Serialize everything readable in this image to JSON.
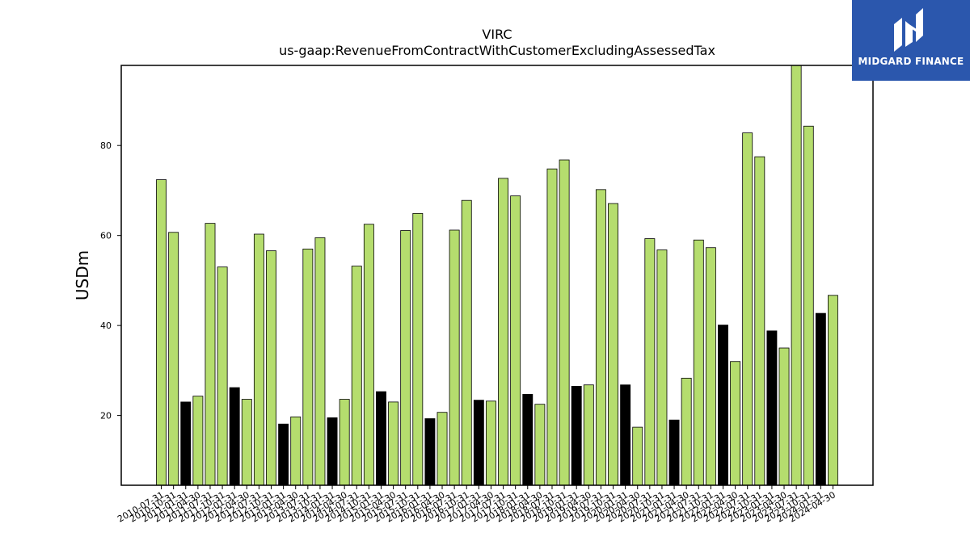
{
  "logo": {
    "text": "MIDGARD FINANCE",
    "background": "#2b57ad",
    "icon": "midgard-m-logo-icon"
  },
  "chart_data": {
    "type": "bar",
    "title": "VIRC",
    "subtitle": "us-gaap:RevenueFromContractWithCustomerExcludingAssessedTax",
    "ylabel": "USDm",
    "xlabel": "",
    "ylim": [
      4.5,
      97.8
    ],
    "yticks": [
      20,
      40,
      60,
      80
    ],
    "grid": false,
    "colors": {
      "default": "#b5dd6e",
      "highlight": "#000000",
      "edge": "#000000"
    },
    "categories": [
      "2010-07-31",
      "2010-10-31",
      "2011-01-31",
      "2011-04-30",
      "2011-07-31",
      "2011-10-31",
      "2012-01-31",
      "2012-04-30",
      "2012-07-31",
      "2012-10-31",
      "2013-01-31",
      "2013-04-30",
      "2013-07-31",
      "2013-10-31",
      "2014-01-31",
      "2014-04-30",
      "2014-07-31",
      "2014-10-31",
      "2015-01-31",
      "2015-04-30",
      "2015-07-31",
      "2015-10-31",
      "2016-01-31",
      "2016-04-30",
      "2016-07-31",
      "2016-10-31",
      "2017-01-31",
      "2017-04-30",
      "2017-07-31",
      "2017-10-31",
      "2018-01-31",
      "2018-04-30",
      "2018-07-31",
      "2018-10-31",
      "2019-01-31",
      "2019-04-30",
      "2019-07-31",
      "2019-10-31",
      "2020-01-31",
      "2020-04-30",
      "2020-07-31",
      "2020-10-31",
      "2021-01-31",
      "2021-04-30",
      "2021-07-31",
      "2021-10-31",
      "2022-01-31",
      "2022-04-30",
      "2022-07-31",
      "2022-10-31",
      "2023-01-31",
      "2023-04-30",
      "2023-07-31",
      "2023-10-31",
      "2024-01-31",
      "2024-04-30"
    ],
    "values": [
      72.4,
      60.7,
      23.0,
      24.3,
      62.7,
      53.0,
      26.2,
      23.6,
      60.3,
      56.6,
      18.1,
      19.7,
      57.0,
      59.5,
      19.5,
      23.6,
      53.2,
      62.5,
      25.3,
      23.0,
      61.1,
      64.9,
      19.3,
      20.7,
      61.2,
      67.8,
      23.4,
      23.2,
      72.7,
      68.8,
      24.7,
      22.5,
      74.8,
      76.8,
      26.5,
      26.8,
      70.2,
      67.1,
      26.8,
      17.4,
      59.3,
      56.8,
      19.0,
      28.3,
      59.0,
      57.3,
      40.1,
      32.0,
      82.8,
      77.5,
      38.8,
      35.0,
      97.9,
      84.3,
      42.7,
      46.7
    ],
    "highlight": [
      false,
      false,
      true,
      false,
      false,
      false,
      true,
      false,
      false,
      false,
      true,
      false,
      false,
      false,
      true,
      false,
      false,
      false,
      true,
      false,
      false,
      false,
      true,
      false,
      false,
      false,
      true,
      false,
      false,
      false,
      true,
      false,
      false,
      false,
      true,
      false,
      false,
      false,
      true,
      false,
      false,
      false,
      true,
      false,
      false,
      false,
      true,
      false,
      false,
      false,
      true,
      false,
      false,
      false,
      true,
      false
    ]
  }
}
